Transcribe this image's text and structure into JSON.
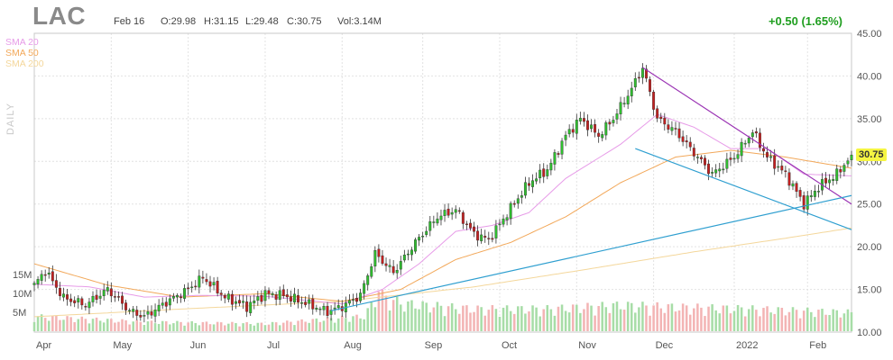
{
  "header": {
    "ticker": "LAC",
    "date": "Feb 16",
    "open": "O:29.98",
    "high": "H:31.15",
    "low": "L:29.48",
    "close": "C:30.75",
    "volume": "Vol:3.14M",
    "change": "+0.50 (1.65%)",
    "axis_label": "DAILY",
    "last_price": "30.75"
  },
  "legend": [
    {
      "label": "SMA 20",
      "color": "#e79be8"
    },
    {
      "label": "SMA 50",
      "color": "#f2a85a"
    },
    {
      "label": "SMA 200",
      "color": "#f4d79b"
    }
  ],
  "colors": {
    "up": "#2fbf2f",
    "down": "#c41f1f",
    "vol_up": "#a7dda7",
    "vol_down": "#f3b4b4",
    "trend_purple": "#9b34b4",
    "trend_blue": "#2f9fd0",
    "grid": "#e2e2e2"
  },
  "chart_data": {
    "type": "candlestick",
    "title": "LAC",
    "y_range": [
      10,
      45
    ],
    "y_ticks": [
      "45.00",
      "40.00",
      "35.00",
      "30.00",
      "25.00",
      "20.00",
      "15.00",
      "10.00"
    ],
    "volume_ticks": [
      "15M",
      "10M",
      "5M"
    ],
    "volume_range_m": [
      0,
      20
    ],
    "x_labels": [
      "Apr",
      "May",
      "Jun",
      "Jul",
      "Aug",
      "Sep",
      "Oct",
      "Nov",
      "Dec",
      "2022",
      "Feb"
    ],
    "x_label_days": [
      0,
      21,
      42,
      63,
      84,
      106,
      127,
      148,
      169,
      191,
      211
    ],
    "days_total": 223,
    "close_keypoints": [
      [
        0,
        15.5
      ],
      [
        3,
        17.2
      ],
      [
        8,
        14.0
      ],
      [
        14,
        13.2
      ],
      [
        20,
        15.0
      ],
      [
        26,
        12.5
      ],
      [
        30,
        11.8
      ],
      [
        36,
        13.5
      ],
      [
        42,
        15.0
      ],
      [
        46,
        16.4
      ],
      [
        52,
        14.1
      ],
      [
        58,
        13.0
      ],
      [
        63,
        14.5
      ],
      [
        68,
        14.3
      ],
      [
        74,
        13.4
      ],
      [
        80,
        12.4
      ],
      [
        84,
        13.0
      ],
      [
        89,
        14.3
      ],
      [
        93,
        19.2
      ],
      [
        98,
        17.0
      ],
      [
        104,
        20.5
      ],
      [
        110,
        23.5
      ],
      [
        115,
        24.3
      ],
      [
        120,
        21.5
      ],
      [
        124,
        20.8
      ],
      [
        130,
        24.5
      ],
      [
        135,
        27.5
      ],
      [
        140,
        29.0
      ],
      [
        145,
        33.0
      ],
      [
        149,
        35.0
      ],
      [
        154,
        33.0
      ],
      [
        158,
        35.0
      ],
      [
        163,
        38.5
      ],
      [
        166,
        41.0
      ],
      [
        170,
        35.0
      ],
      [
        175,
        33.5
      ],
      [
        180,
        31.0
      ],
      [
        185,
        28.5
      ],
      [
        191,
        30.5
      ],
      [
        196,
        33.5
      ],
      [
        200,
        30.5
      ],
      [
        205,
        28.5
      ],
      [
        210,
        25.0
      ],
      [
        214,
        27.0
      ],
      [
        219,
        28.5
      ],
      [
        223,
        30.75
      ]
    ],
    "sma20_keypoints": [
      [
        0,
        15.6
      ],
      [
        15,
        15.3
      ],
      [
        30,
        14.1
      ],
      [
        45,
        14.3
      ],
      [
        63,
        14.2
      ],
      [
        84,
        13.3
      ],
      [
        95,
        15.0
      ],
      [
        105,
        18.0
      ],
      [
        115,
        21.8
      ],
      [
        125,
        22.5
      ],
      [
        135,
        24.0
      ],
      [
        145,
        28.0
      ],
      [
        160,
        32.0
      ],
      [
        170,
        35.5
      ],
      [
        180,
        34.0
      ],
      [
        190,
        31.5
      ],
      [
        200,
        31.5
      ],
      [
        210,
        28.5
      ],
      [
        223,
        28.3
      ]
    ],
    "sma50_keypoints": [
      [
        0,
        18.0
      ],
      [
        20,
        15.5
      ],
      [
        40,
        14.1
      ],
      [
        63,
        14.5
      ],
      [
        84,
        13.6
      ],
      [
        100,
        15.0
      ],
      [
        115,
        18.5
      ],
      [
        130,
        20.5
      ],
      [
        145,
        23.5
      ],
      [
        160,
        27.5
      ],
      [
        175,
        30.5
      ],
      [
        190,
        31.3
      ],
      [
        205,
        30.5
      ],
      [
        223,
        29.2
      ]
    ],
    "sma200_keypoints": [
      [
        0,
        11.8
      ],
      [
        40,
        12.7
      ],
      [
        84,
        13.6
      ],
      [
        120,
        15.3
      ],
      [
        150,
        17.3
      ],
      [
        180,
        19.4
      ],
      [
        205,
        21.0
      ],
      [
        223,
        22.2
      ]
    ],
    "trendlines": [
      {
        "color_key": "trend_purple",
        "points": [
          [
            166,
            41.0
          ],
          [
            223,
            25.0
          ]
        ]
      },
      {
        "color_key": "trend_blue",
        "points": [
          [
            164,
            31.5
          ],
          [
            223,
            22.0
          ]
        ]
      },
      {
        "color_key": "trend_blue",
        "points": [
          [
            81,
            12.5
          ],
          [
            223,
            26.0
          ]
        ]
      }
    ],
    "volume_keypoints": [
      [
        0,
        4.0
      ],
      [
        30,
        2.5
      ],
      [
        63,
        2.0
      ],
      [
        90,
        4.0
      ],
      [
        94,
        10.0
      ],
      [
        100,
        7.5
      ],
      [
        120,
        6.0
      ],
      [
        140,
        6.0
      ],
      [
        160,
        7.0
      ],
      [
        175,
        6.5
      ],
      [
        195,
        6.0
      ],
      [
        223,
        5.0
      ]
    ]
  }
}
